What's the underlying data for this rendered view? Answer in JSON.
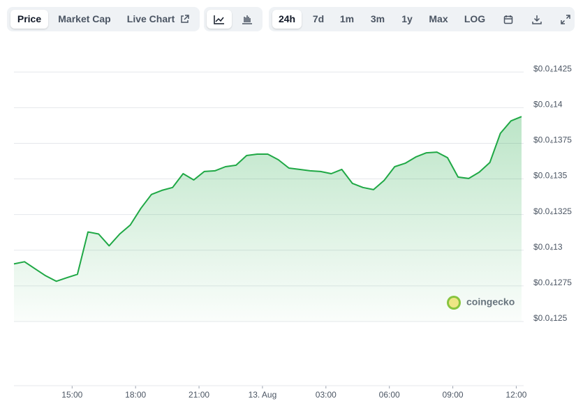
{
  "toolbar": {
    "tabs": [
      "Price",
      "Market Cap",
      "Live Chart"
    ],
    "ranges": [
      "24h",
      "7d",
      "1m",
      "3m",
      "1y",
      "Max",
      "LOG"
    ]
  },
  "watermark": "coingecko",
  "chart_data": {
    "type": "line",
    "area": true,
    "grid": true,
    "x": [
      12.25,
      12.75,
      13.25,
      13.75,
      14.25,
      14.75,
      15.25,
      15.75,
      16.25,
      16.75,
      17.25,
      17.75,
      18.25,
      18.75,
      19.25,
      19.75,
      20.25,
      20.75,
      21.25,
      21.75,
      22.25,
      22.75,
      23.25,
      23.75,
      24.25,
      24.75,
      25.25,
      25.75,
      26.25,
      26.75,
      27.25,
      27.75,
      28.25,
      28.75,
      29.25,
      29.75,
      30.25,
      30.75,
      31.25,
      31.75,
      32.25,
      32.75,
      33.25,
      33.75,
      34.25,
      34.75,
      35.25,
      35.75,
      36.25
    ],
    "series": [
      {
        "color": "#1fa845",
        "values": [
          1.2904e-05,
          1.2919e-05,
          1.287e-05,
          1.2821e-05,
          1.2782e-05,
          1.2807e-05,
          1.2831e-05,
          1.3128e-05,
          1.3114e-05,
          1.3031e-05,
          1.3114e-05,
          1.3177e-05,
          1.3294e-05,
          1.3391e-05,
          1.342e-05,
          1.344e-05,
          1.3537e-05,
          1.3493e-05,
          1.3552e-05,
          1.3557e-05,
          1.3586e-05,
          1.3596e-05,
          1.3664e-05,
          1.3674e-05,
          1.3674e-05,
          1.3635e-05,
          1.3576e-05,
          1.3567e-05,
          1.3557e-05,
          1.3552e-05,
          1.3537e-05,
          1.3567e-05,
          1.3469e-05,
          1.344e-05,
          1.3425e-05,
          1.3489e-05,
          1.3586e-05,
          1.361e-05,
          1.3654e-05,
          1.3683e-05,
          1.3688e-05,
          1.3649e-05,
          1.3513e-05,
          1.3503e-05,
          1.3547e-05,
          1.3615e-05,
          1.382e-05,
          1.3907e-05,
          1.3937e-05
        ]
      }
    ],
    "xlim": [
      12.25,
      36.25
    ],
    "xticks": [
      {
        "value": 15,
        "label": "15:00"
      },
      {
        "value": 18,
        "label": "18:00"
      },
      {
        "value": 21,
        "label": "21:00"
      },
      {
        "value": 24,
        "label": "13. Aug"
      },
      {
        "value": 27,
        "label": "03:00"
      },
      {
        "value": 30,
        "label": "06:00"
      },
      {
        "value": 33,
        "label": "09:00"
      },
      {
        "value": 36,
        "label": "12:00"
      }
    ],
    "ylim": [
      1.25e-05,
      1.43e-05
    ],
    "yticks": [
      {
        "value": 1.25e-05,
        "label": "$0.0₄125"
      },
      {
        "value": 1.275e-05,
        "label": "$0.0₄1275"
      },
      {
        "value": 1.3e-05,
        "label": "$0.0₄13"
      },
      {
        "value": 1.325e-05,
        "label": "$0.0₄1325"
      },
      {
        "value": 1.35e-05,
        "label": "$0.0₄135"
      },
      {
        "value": 1.375e-05,
        "label": "$0.0₄1375"
      },
      {
        "value": 1.4e-05,
        "label": "$0.0₄14"
      },
      {
        "value": 1.425e-05,
        "label": "$0.0₄1425"
      }
    ]
  }
}
